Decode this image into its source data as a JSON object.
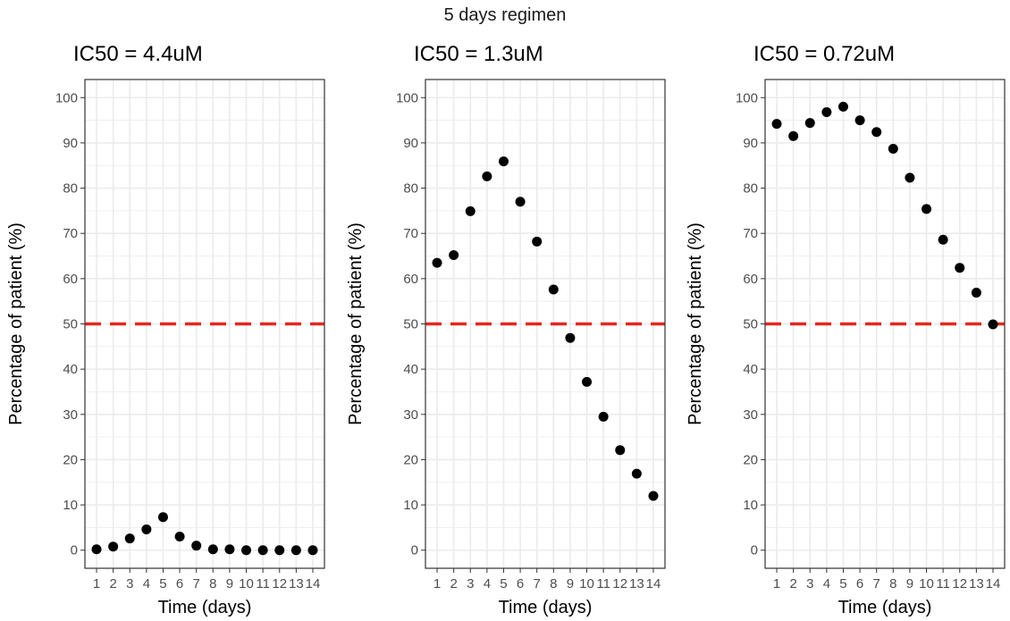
{
  "figure": {
    "suptitle": "5 days regimen"
  },
  "colors": {
    "threshold_line": "#e8251c",
    "point": "#000000",
    "grid": "#ebebeb",
    "panel_border": "#333333",
    "tick_text": "#4d4d4d"
  },
  "chart_data": [
    {
      "type": "scatter",
      "title": "IC50 = 4.4uM",
      "xlabel": "Time (days)",
      "ylabel": "Percentage of patient (%)",
      "x": [
        1,
        2,
        3,
        4,
        5,
        6,
        7,
        8,
        9,
        10,
        11,
        12,
        13,
        14
      ],
      "y": [
        0.2,
        0.8,
        2.6,
        4.6,
        7.3,
        3.0,
        1.0,
        0.2,
        0.2,
        0.0,
        0.0,
        0.0,
        0.0,
        0.0
      ],
      "xticks": [
        "1",
        "2",
        "3",
        "4",
        "5",
        "6",
        "7",
        "8",
        "9",
        "10",
        "11",
        "12",
        "13",
        "14"
      ],
      "yticks": [
        0,
        10,
        20,
        30,
        40,
        50,
        60,
        70,
        80,
        90,
        100
      ],
      "ylim": [
        -4,
        104
      ],
      "xlim": [
        0.3,
        14.7
      ],
      "reference_line": {
        "y": 50,
        "style": "dashed"
      },
      "grid": true,
      "legend": "none"
    },
    {
      "type": "scatter",
      "title": "IC50 = 1.3uM",
      "xlabel": "Time (days)",
      "ylabel": "Percentage of patient (%)",
      "x": [
        1,
        2,
        3,
        4,
        5,
        6,
        7,
        8,
        9,
        10,
        11,
        12,
        13,
        14
      ],
      "y": [
        63.5,
        65.2,
        74.9,
        82.6,
        85.9,
        77.0,
        68.2,
        57.6,
        46.9,
        37.2,
        29.5,
        22.1,
        16.9,
        12.0
      ],
      "xticks": [
        "1",
        "2",
        "3",
        "4",
        "5",
        "6",
        "7",
        "8",
        "9",
        "10",
        "11",
        "12",
        "13",
        "14"
      ],
      "yticks": [
        0,
        10,
        20,
        30,
        40,
        50,
        60,
        70,
        80,
        90,
        100
      ],
      "ylim": [
        -4,
        104
      ],
      "xlim": [
        0.3,
        14.7
      ],
      "reference_line": {
        "y": 50,
        "style": "dashed"
      },
      "grid": true,
      "legend": "none"
    },
    {
      "type": "scatter",
      "title": "IC50 = 0.72uM",
      "xlabel": "Time (days)",
      "ylabel": "Percentage of patient (%)",
      "x": [
        1,
        2,
        3,
        4,
        5,
        6,
        7,
        8,
        9,
        10,
        11,
        12,
        13,
        14
      ],
      "y": [
        94.2,
        91.5,
        94.4,
        96.8,
        98.0,
        95.0,
        92.4,
        88.7,
        82.3,
        75.4,
        68.6,
        62.4,
        56.9,
        49.9
      ],
      "xticks": [
        "1",
        "2",
        "3",
        "4",
        "5",
        "6",
        "7",
        "8",
        "9",
        "10",
        "11",
        "12",
        "13",
        "14"
      ],
      "yticks": [
        0,
        10,
        20,
        30,
        40,
        50,
        60,
        70,
        80,
        90,
        100
      ],
      "ylim": [
        -4,
        104
      ],
      "xlim": [
        0.3,
        14.7
      ],
      "reference_line": {
        "y": 50,
        "style": "dashed"
      },
      "grid": true,
      "legend": "none"
    }
  ]
}
